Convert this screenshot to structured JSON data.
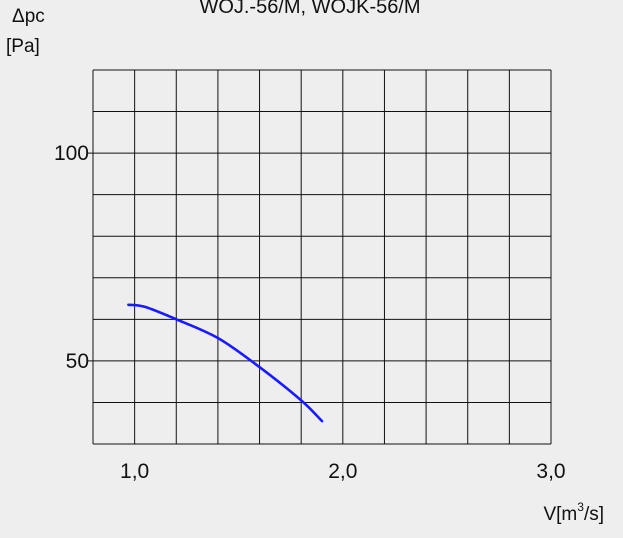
{
  "chart_data": {
    "type": "line",
    "title": "WOJ.-56/M, WOJK-56/M",
    "ylabel_line1": "Δpc",
    "ylabel_line2": "[Pa]",
    "xlabel_main": "V[m",
    "xlabel_sup": "3",
    "xlabel_end": "/s]",
    "xlim": [
      0.8,
      3.0
    ],
    "ylim": [
      30,
      120
    ],
    "x_ticks": [
      {
        "value": 1.0,
        "label": "1,0"
      },
      {
        "value": 2.0,
        "label": "2,0"
      },
      {
        "value": 3.0,
        "label": "3,0"
      }
    ],
    "y_ticks": [
      {
        "value": 50,
        "label": "50"
      },
      {
        "value": 100,
        "label": "100"
      }
    ],
    "grid": true,
    "grid_x_step": 0.2,
    "grid_y_step": 10,
    "series": [
      {
        "color": "#1a1aff",
        "x": [
          0.97,
          1.05,
          1.2,
          1.4,
          1.6,
          1.8,
          1.9
        ],
        "y": [
          63.5,
          63,
          60,
          55.5,
          48.5,
          40.5,
          35.5
        ]
      }
    ]
  }
}
